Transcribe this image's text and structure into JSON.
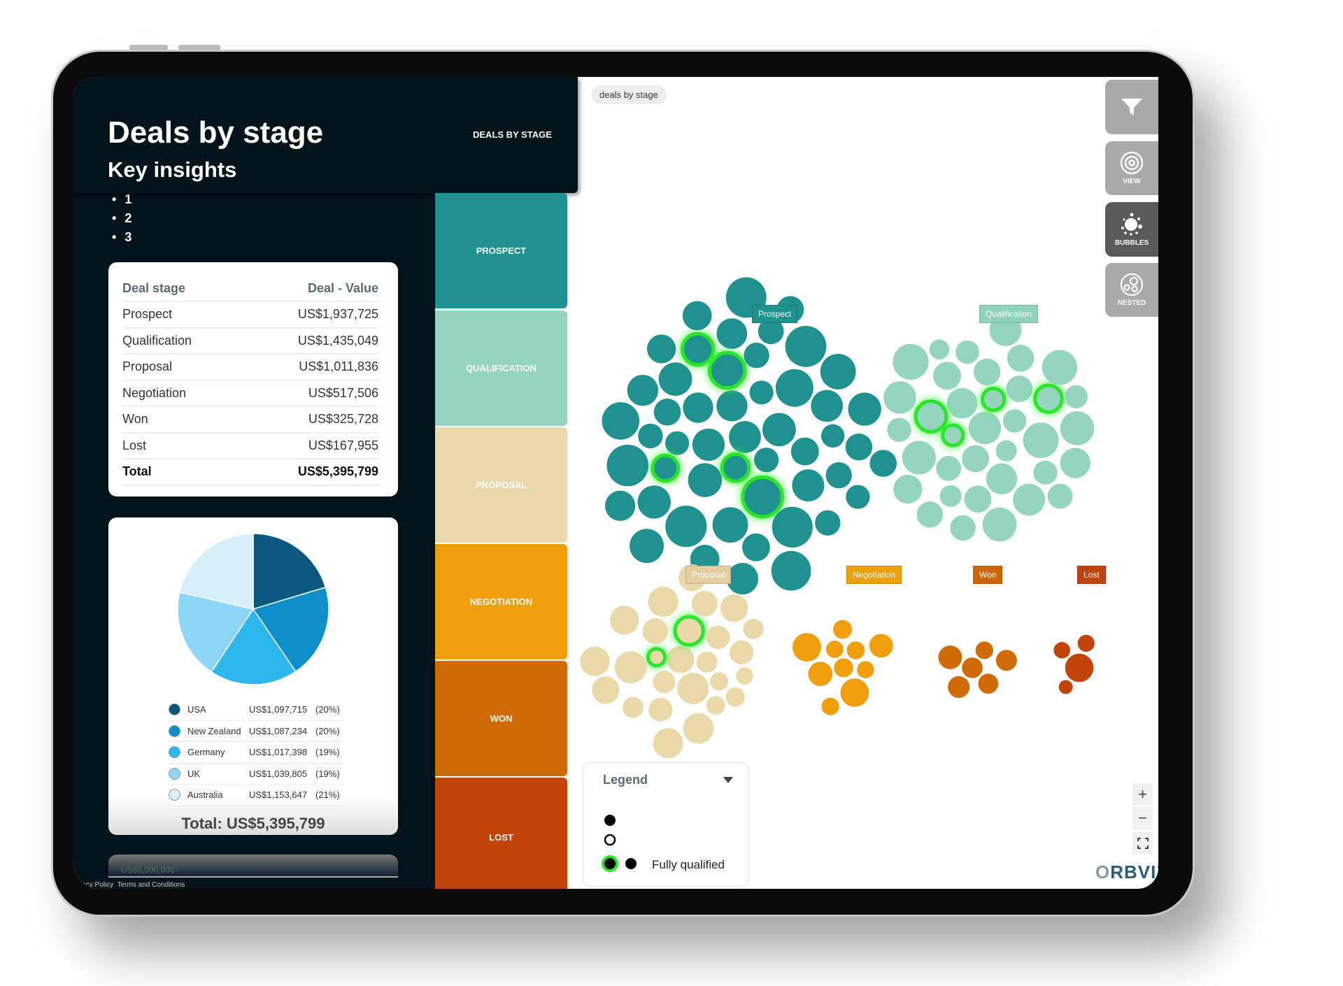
{
  "header": {
    "title": "Deals by stage",
    "subtitle": "Key insights",
    "insights": [
      "1",
      "2",
      "3"
    ],
    "tab_label": "DEALS BY STAGE"
  },
  "table": {
    "headers": [
      "Deal stage",
      "Deal - Value"
    ],
    "rows": [
      [
        "Prospect",
        "US$1,937,725"
      ],
      [
        "Qualification",
        "US$1,435,049"
      ],
      [
        "Proposal",
        "US$1,011,836"
      ],
      [
        "Negotiation",
        "US$517,506"
      ],
      [
        "Won",
        "US$325,728"
      ],
      [
        "Lost",
        "US$167,955"
      ]
    ],
    "total": [
      "Total",
      "US$5,395,799"
    ]
  },
  "chart_data": {
    "type": "pie",
    "categories": [
      "USA",
      "New Zealand",
      "Germany",
      "UK",
      "Australia"
    ],
    "values": [
      1097715,
      1087234,
      1017398,
      1039805,
      1153647
    ],
    "value_labels": [
      "US$1,097,715",
      "US$1,087,234",
      "US$1,017,398",
      "US$1,039,805",
      "US$1,153,647"
    ],
    "percent_labels": [
      "(20%)",
      "(20%)",
      "(19%)",
      "(19%)",
      "(21%)"
    ],
    "colors": [
      "#08587d",
      "#0c8ec8",
      "#2cb7ee",
      "#8ed6f7",
      "#d5effb"
    ],
    "total_label": "Total: US$5,395,799"
  },
  "faded_card_text": "US$5,000,000",
  "footer": {
    "privacy": "Privacy Policy",
    "terms": "Terms and Conditions"
  },
  "stages": [
    {
      "label": "PROSPECT",
      "tag": "Prospect",
      "color": "#1f918e",
      "tag_color": "#1f918e"
    },
    {
      "label": "QUALIFICATION",
      "tag": "Qualification",
      "color": "#95d5bf",
      "tag_color": "#8fd3bd"
    },
    {
      "label": "PROPOSAL",
      "tag": "Proposal",
      "color": "#e9d8a8",
      "tag_color": "#e3cfa0"
    },
    {
      "label": "NEGOTIATION",
      "tag": "Negotiation",
      "color": "#ef9e0c",
      "tag_color": "#ef9e0c"
    },
    {
      "label": "WON",
      "tag": "Won",
      "color": "#d06a04",
      "tag_color": "#cc6506"
    },
    {
      "label": "LOST",
      "tag": "Lost",
      "color": "#c1440a",
      "tag_color": "#c1440a"
    }
  ],
  "breadcrumb_chip": "deals by stage",
  "toolbar": [
    {
      "icon": "filter-icon",
      "label": ""
    },
    {
      "icon": "target-icon",
      "label": "VIEW"
    },
    {
      "icon": "bubbles-icon",
      "label": "BUBBLES",
      "active": true
    },
    {
      "icon": "nested-icon",
      "label": "NESTED"
    }
  ],
  "legend": {
    "title": "Legend",
    "fully_qualified": "Fully qualified",
    "highlight_color": "#2be52b"
  },
  "zoom_controls": {
    "plus": "+",
    "minus": "−"
  },
  "brand": {
    "logo": "ORBVIZ"
  }
}
